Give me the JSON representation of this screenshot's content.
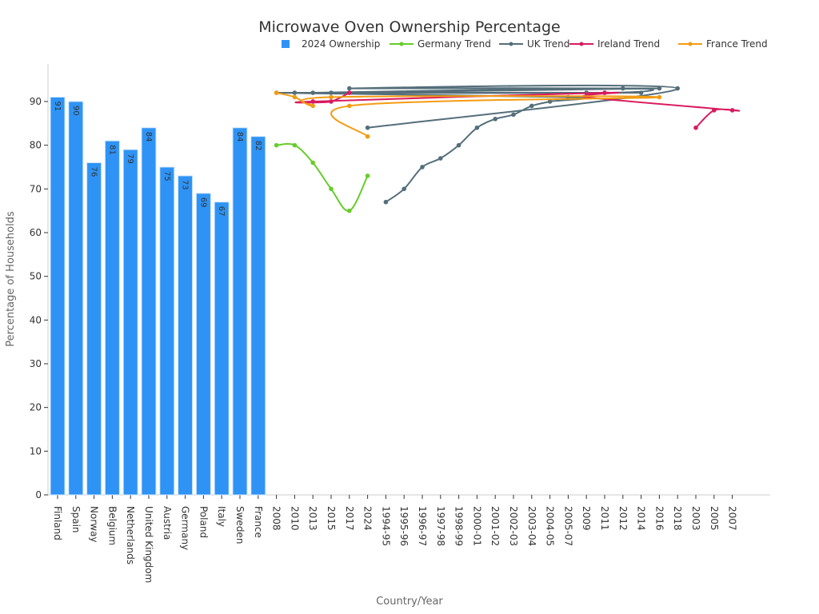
{
  "chart_data": {
    "type": "bar+line",
    "title": "Microwave Oven Ownership Percentage",
    "xlabel": "Country/Year",
    "ylabel": "Percentage of Households",
    "ylim": [
      0,
      98
    ],
    "yticks": [
      0,
      10,
      20,
      30,
      40,
      50,
      60,
      70,
      80,
      90
    ],
    "grid": false,
    "legend_position": "top-right",
    "categories": [
      "Finland",
      "Spain",
      "Norway",
      "Belgium",
      "Netherlands",
      "United Kingdom",
      "Austria",
      "Germany",
      "Poland",
      "Italy",
      "Sweden",
      "France",
      "2008",
      "2010",
      "2013",
      "2015",
      "2017",
      "2024",
      "1994-95",
      "1995-96",
      "1996-97",
      "1997-98",
      "1998-99",
      "2000-01",
      "2001-02",
      "2002-03",
      "2003-04",
      "2004-05",
      "2005-07",
      "2009",
      "2011",
      "2012",
      "2014",
      "2016",
      "2018",
      "2003",
      "2005",
      "2007"
    ],
    "bars": {
      "name": "2024 Ownership",
      "color": "#2e93f5",
      "x": [
        "Finland",
        "Spain",
        "Norway",
        "Belgium",
        "Netherlands",
        "United Kingdom",
        "Austria",
        "Germany",
        "Poland",
        "Italy",
        "Sweden",
        "France"
      ],
      "values": [
        91,
        90,
        76,
        81,
        79,
        84,
        75,
        73,
        69,
        67,
        84,
        82
      ]
    },
    "series": [
      {
        "name": "Germany Trend",
        "color": "#66cc2a",
        "x": [
          "2008",
          "2010",
          "2013",
          "2015",
          "2017",
          "2024"
        ],
        "values": [
          80,
          80,
          76,
          70,
          65,
          73
        ]
      },
      {
        "name": "UK Trend",
        "color": "#546e7a",
        "x": [
          "1994-95",
          "1995-96",
          "1996-97",
          "1997-98",
          "1998-99",
          "2000-01",
          "2001-02",
          "2002-03",
          "2003-04",
          "2004-05",
          "2005-07",
          "2008",
          "2009",
          "2010",
          "2011",
          "2012",
          "2013",
          "2014",
          "2015",
          "2016",
          "2017",
          "2018",
          "2024"
        ],
        "values": [
          67,
          70,
          75,
          77,
          80,
          84,
          86,
          87,
          89,
          90,
          91,
          92,
          92,
          92,
          92,
          93,
          92,
          92,
          92,
          93,
          93,
          93,
          84
        ]
      },
      {
        "name": "Ireland Trend",
        "color": "#d81b60",
        "x": [
          "2003",
          "2005",
          "2007",
          "2009",
          "2011",
          "2013",
          "2015",
          "2017"
        ],
        "values": [
          84,
          88,
          88,
          91,
          92,
          90,
          90,
          92
        ]
      },
      {
        "name": "France Trend",
        "color": "#f39c12",
        "x": [
          "2008",
          "2010",
          "2013",
          "2015",
          "2016",
          "2017",
          "2024"
        ],
        "values": [
          92,
          91,
          89,
          91,
          91,
          89,
          82
        ]
      }
    ]
  }
}
